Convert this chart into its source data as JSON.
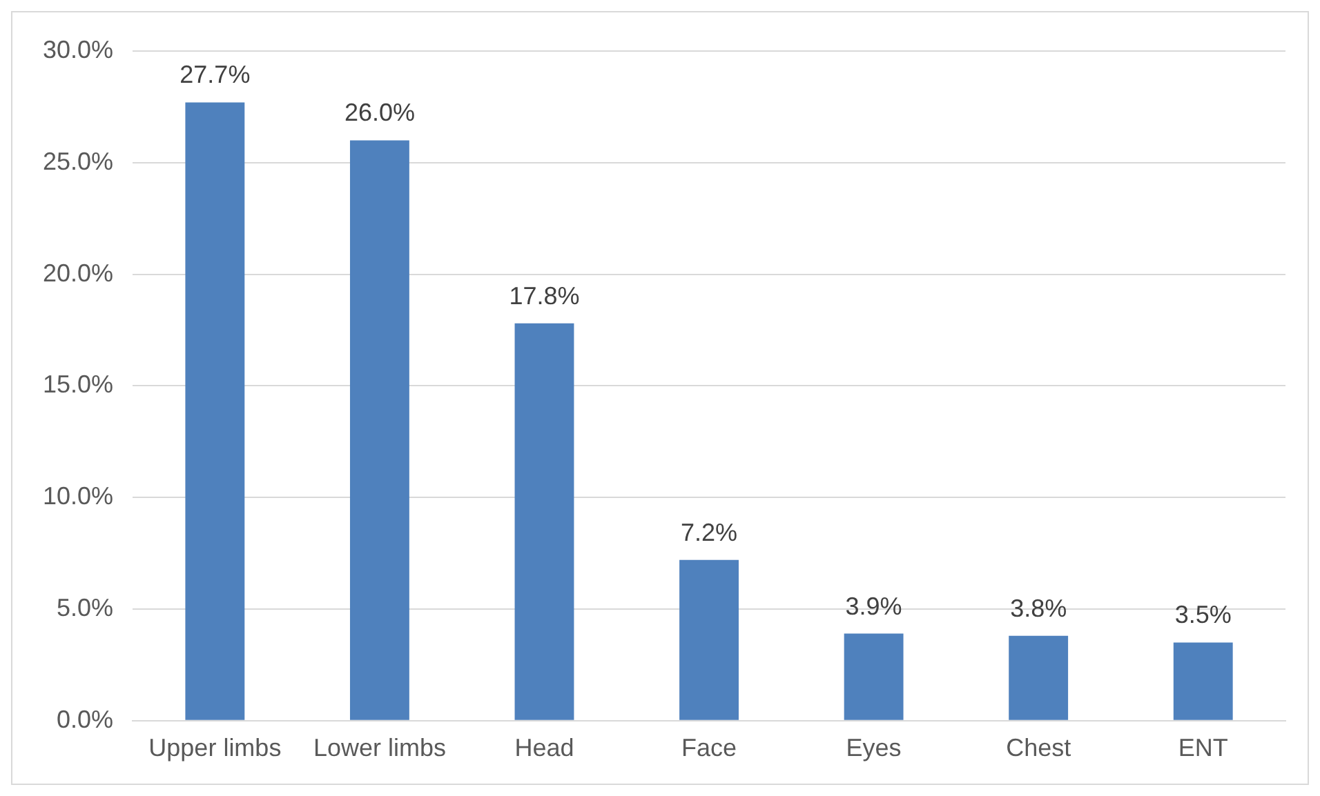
{
  "chart_data": {
    "type": "bar",
    "categories": [
      "Upper limbs",
      "Lower limbs",
      "Head",
      "Face",
      "Eyes",
      "Chest",
      "ENT"
    ],
    "values": [
      27.7,
      26.0,
      17.8,
      7.2,
      3.9,
      3.8,
      3.5
    ],
    "value_labels": [
      "27.7%",
      "26.0%",
      "17.8%",
      "7.2%",
      "3.9%",
      "3.8%",
      "3.5%"
    ],
    "color": "#4f81bd",
    "ylim": [
      0,
      30
    ],
    "yticks": [
      {
        "value": 0,
        "label": "0.0%"
      },
      {
        "value": 5,
        "label": "5.0%"
      },
      {
        "value": 10,
        "label": "10.0%"
      },
      {
        "value": 15,
        "label": "15.0%"
      },
      {
        "value": 20,
        "label": "20.0%"
      },
      {
        "value": 25,
        "label": "25.0%"
      },
      {
        "value": 30,
        "label": "30.0%"
      }
    ],
    "grid": "y",
    "legend": false
  }
}
